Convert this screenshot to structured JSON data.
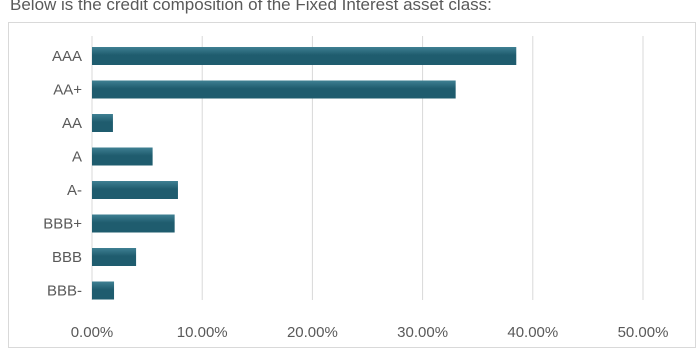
{
  "intro_text": "Below is the credit composition of the Fixed Interest asset class:",
  "chart_data": {
    "type": "bar",
    "orientation": "horizontal",
    "categories": [
      "AAA",
      "AA+",
      "AA",
      "A",
      "A-",
      "BBB+",
      "BBB",
      "BBB-"
    ],
    "values": [
      38.5,
      33.0,
      1.9,
      5.5,
      7.8,
      7.5,
      4.0,
      2.0
    ],
    "value_unit": "%",
    "xlim": [
      0,
      50
    ],
    "x_ticks": [
      "0.00%",
      "10.00%",
      "20.00%",
      "30.00%",
      "40.00%",
      "50.00%"
    ],
    "grid": "vertical",
    "legend": "none",
    "colors": {
      "bar": "#1f5c6e",
      "bar_highlight": "#3f8093",
      "grid": "#d9d9d9",
      "text": "#595959"
    },
    "title": "",
    "xlabel": "",
    "ylabel": ""
  }
}
